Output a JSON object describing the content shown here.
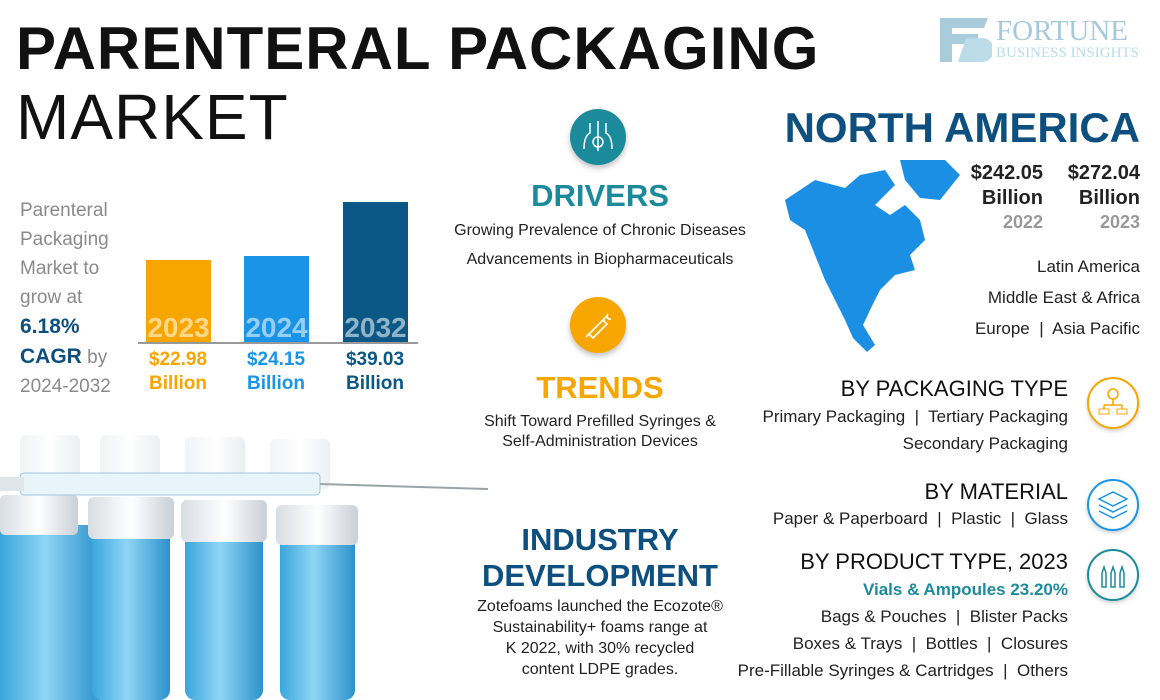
{
  "header": {
    "title_line1": "PARENTERAL PACKAGING",
    "title_line2": "MARKET",
    "logo_text_1": "FORTUNE",
    "logo_text_2": "BUSINESS INSIGHTS"
  },
  "growth": {
    "line1": "Parenteral",
    "line2": "Packaging",
    "line3": "Market to",
    "line4": "grow at",
    "cagr": "6.18%",
    "cagr_label": "CAGR",
    "by": "by",
    "period": "2024-2032"
  },
  "chart_data": {
    "type": "bar",
    "categories": [
      "2023",
      "2024",
      "2032"
    ],
    "values": [
      22.98,
      24.15,
      39.03
    ],
    "value_labels": [
      "$22.98",
      "$24.15",
      "$39.03"
    ],
    "unit_label": "Billion",
    "colors": [
      "#f7a600",
      "#1a94e6",
      "#0b5785"
    ],
    "ylim": [
      0,
      40
    ]
  },
  "drivers": {
    "title": "DRIVERS",
    "items": [
      "Growing Prevalence of Chronic Diseases",
      "Advancements in Biopharmaceuticals"
    ],
    "icon": "human-body-icon",
    "color": "#1b8b9b"
  },
  "trends": {
    "title": "TRENDS",
    "line1": "Shift Toward Prefilled Syringes &",
    "line2": "Self-Administration Devices",
    "icon": "syringe-icon",
    "color": "#f7a600"
  },
  "industry": {
    "title1": "INDUSTRY",
    "title2": "DEVELOPMENT",
    "lines": [
      "Zotefoams launched the Ecozote®",
      "Sustainability+ foams range at",
      "K 2022, with 30% recycled",
      "content LDPE grades."
    ],
    "color": "#0d4f7e"
  },
  "region": {
    "title": "NORTH AMERICA",
    "v1": "$242.05",
    "v1_unit": "Billion",
    "v1_year": "2022",
    "v2": "$272.04",
    "v2_unit": "Billion",
    "v2_year": "2023",
    "others": [
      "Latin America",
      "Middle East & Africa",
      "Europe  |  Asia Pacific"
    ],
    "map_color": "#1a8fe3"
  },
  "packaging": {
    "title": "BY PACKAGING TYPE",
    "line1": "Primary Packaging  |  Tertiary Packaging",
    "line2": "Secondary Packaging",
    "icon": "gear-flowchart-icon"
  },
  "material": {
    "title": "BY MATERIAL",
    "line1": "Paper & Paperboard  |  Plastic  |  Glass",
    "icon": "layers-icon"
  },
  "product": {
    "title": "BY PRODUCT TYPE, 2023",
    "highlight": "Vials & Ampoules 23.20%",
    "lines": [
      "Bags & Pouches  |  Blister Packs",
      "Boxes & Trays  |  Bottles  |  Closures",
      "Pre-Fillable Syringes & Cartridges  |  Others"
    ],
    "icon": "ampoules-icon"
  }
}
